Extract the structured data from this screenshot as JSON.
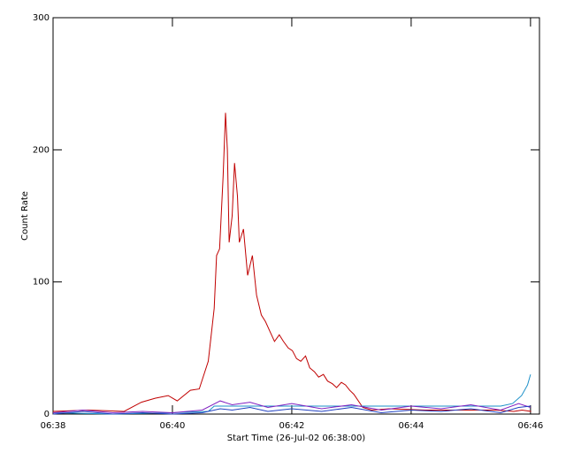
{
  "chart_data": {
    "type": "line",
    "xlabel": "Start Time (26-Jul-02 06:38:00)",
    "ylabel": "Count Rate",
    "xlim": [
      0,
      8.15
    ],
    "ylim": [
      0,
      300
    ],
    "xticks": [
      {
        "value": 0,
        "label": "06:38"
      },
      {
        "value": 2,
        "label": "06:40"
      },
      {
        "value": 4,
        "label": "06:42"
      },
      {
        "value": 6,
        "label": "06:44"
      },
      {
        "value": 8,
        "label": "06:46"
      }
    ],
    "yticks": [
      {
        "value": 0,
        "label": "0"
      },
      100,
      200,
      300
    ],
    "series": [
      {
        "color": "#c00000",
        "x": [
          0,
          0.59,
          1.19,
          1.48,
          1.71,
          1.93,
          2.08,
          2.3,
          2.45,
          2.6,
          2.7,
          2.74,
          2.79,
          2.85,
          2.89,
          2.92,
          2.95,
          3.0,
          3.04,
          3.09,
          3.12,
          3.19,
          3.26,
          3.34,
          3.41,
          3.49,
          3.56,
          3.64,
          3.71,
          3.79,
          3.86,
          3.94,
          4.01,
          4.08,
          4.15,
          4.23,
          4.3,
          4.38,
          4.45,
          4.53,
          4.6,
          4.68,
          4.75,
          4.83,
          4.9,
          4.97,
          5.04,
          5.19,
          5.34,
          5.64,
          6.23,
          6.82,
          7.42,
          7.72,
          7.86,
          8.01
        ],
        "values": [
          2,
          3,
          2,
          9,
          12,
          14,
          10,
          18,
          19,
          40,
          80,
          120,
          125,
          180,
          228,
          200,
          130,
          150,
          190,
          165,
          130,
          140,
          105,
          120,
          90,
          75,
          70,
          62,
          55,
          60,
          55,
          50,
          48,
          42,
          40,
          44,
          35,
          32,
          28,
          30,
          25,
          23,
          20,
          24,
          22,
          18,
          15,
          5,
          3,
          4,
          3,
          3,
          3,
          2,
          3,
          2
        ]
      },
      {
        "color": "#1a8fc8",
        "x": [
          0,
          1.0,
          2.0,
          2.6,
          2.7,
          4.0,
          6.0,
          7.5,
          7.7,
          7.85,
          7.95,
          8.0
        ],
        "values": [
          1,
          0,
          1,
          2,
          6,
          6,
          6,
          6,
          8,
          14,
          22,
          30
        ]
      },
      {
        "color": "#8020c0",
        "x": [
          0,
          0.5,
          1.0,
          1.5,
          2.0,
          2.5,
          2.8,
          3.0,
          3.3,
          3.6,
          4.0,
          4.5,
          5.0,
          5.5,
          6.0,
          6.5,
          7.0,
          7.5,
          7.8,
          8.0
        ],
        "values": [
          1,
          3,
          1,
          2,
          1,
          3,
          10,
          7,
          9,
          5,
          8,
          4,
          7,
          3,
          6,
          4,
          7,
          3,
          8,
          5
        ]
      },
      {
        "color": "#2040c0",
        "x": [
          0,
          0.5,
          1.0,
          1.5,
          2.0,
          2.5,
          2.8,
          3.0,
          3.3,
          3.6,
          4.0,
          4.5,
          5.0,
          5.5,
          6.0,
          6.5,
          7.0,
          7.5,
          7.8,
          8.0
        ],
        "values": [
          0,
          2,
          0,
          1,
          0,
          1,
          4,
          3,
          5,
          2,
          4,
          2,
          5,
          1,
          3,
          2,
          4,
          1,
          5,
          6
        ]
      }
    ]
  }
}
